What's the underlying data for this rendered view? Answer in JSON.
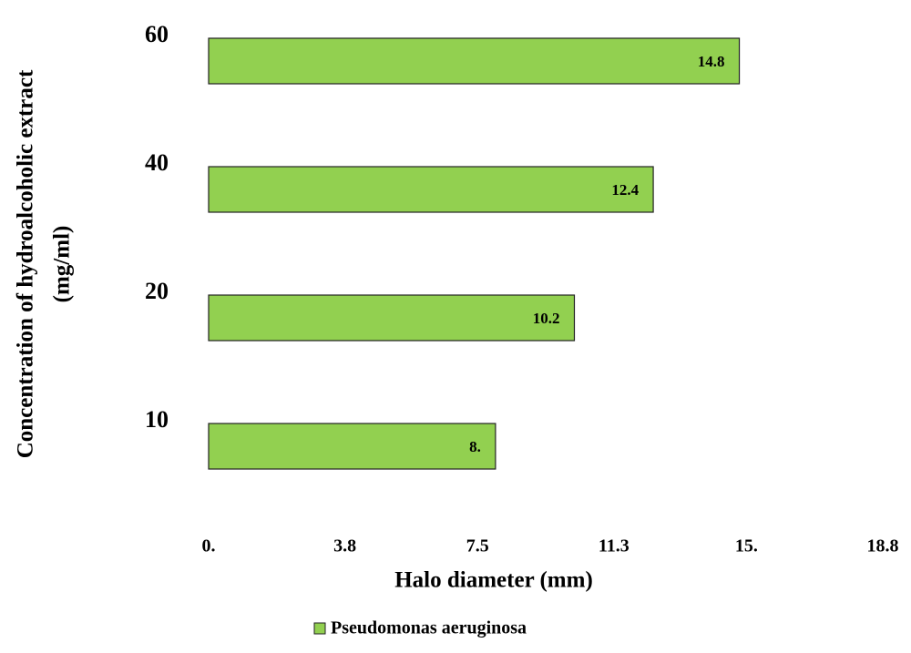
{
  "chart_data": {
    "type": "bar",
    "orientation": "horizontal",
    "y_label": [
      "Concentration of hydroalcoholic extract",
      "(mg/ml)"
    ],
    "x_label": "Halo diameter (mm)",
    "categories": [
      "10",
      "20",
      "40",
      "60"
    ],
    "series": [
      {
        "name": "Pseudomonas aeruginosa",
        "color": "#92d050",
        "values": [
          8,
          10.2,
          12.4,
          14.8
        ],
        "value_labels": [
          "8.",
          "10.2",
          "12.4",
          "14.8"
        ]
      }
    ],
    "xlim": [
      0,
      18.8
    ],
    "xticks": [
      {
        "value": 0,
        "label": "0."
      },
      3.8,
      7.5,
      11.3,
      {
        "value": 15,
        "label": "15."
      },
      18.8
    ],
    "grid": false,
    "legend": "bottom"
  }
}
